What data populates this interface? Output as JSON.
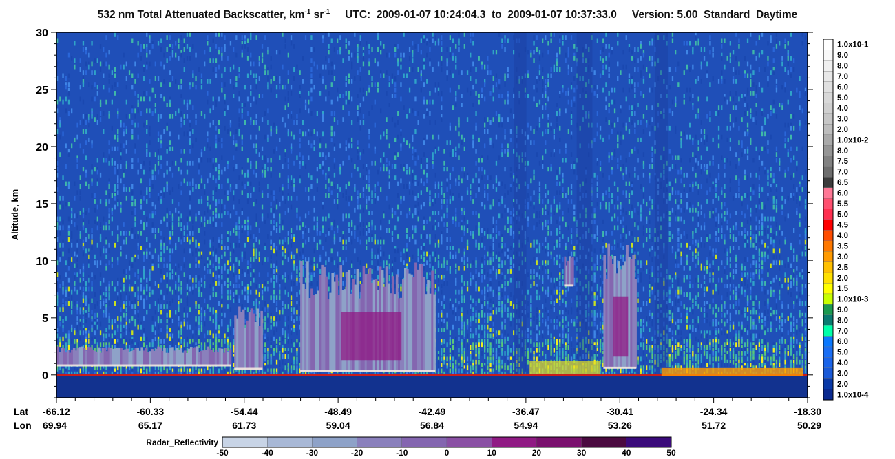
{
  "title": {
    "main": "532 nm Total Attenuated Backscatter, km",
    "unit_exp1": "-1",
    "unit_sr": " sr",
    "unit_exp2": "-1",
    "utc_prefix": "UTC:",
    "utc_start": "2009-01-07 10:24:04.3",
    "to_word": "to",
    "utc_end": "2009-01-07 10:37:33.0",
    "version": "Version: 5.00",
    "product": "Standard",
    "daytime": "Daytime"
  },
  "chart_data": {
    "type": "heatmap",
    "ylabel": "Altitude, km",
    "ylim": [
      -2,
      30
    ],
    "y_ticks": [
      0,
      5,
      10,
      15,
      20,
      25,
      30
    ],
    "x_rows": {
      "lat_label": "Lat",
      "lon_label": "Lon",
      "lat": [
        "-66.12",
        "-60.33",
        "-54.44",
        "-48.49",
        "-42.49",
        "-36.47",
        "-30.41",
        "-24.34",
        "-18.30"
      ],
      "lon": [
        "69.94",
        "65.17",
        "61.73",
        "59.04",
        "56.84",
        "54.94",
        "53.26",
        "51.72",
        "50.29"
      ]
    },
    "backscatter_colorbar": {
      "labels": [
        "1.0x10-1",
        "9.0",
        "8.0",
        "7.0",
        "6.0",
        "5.0",
        "4.0",
        "3.0",
        "2.0",
        "1.0x10-2",
        "8.0",
        "7.5",
        "7.0",
        "6.5",
        "6.0",
        "5.5",
        "5.0",
        "4.5",
        "4.0",
        "3.5",
        "3.0",
        "2.5",
        "2.0",
        "1.5",
        "1.0x10-3",
        "9.0",
        "8.0",
        "7.0",
        "6.0",
        "5.0",
        "4.0",
        "3.0",
        "2.0",
        "1.0x10-4"
      ],
      "colors": [
        "#ffffff",
        "#f8f8f8",
        "#f0f0f0",
        "#e8e8e8",
        "#e0e0e0",
        "#d8d8d8",
        "#cfcfcf",
        "#c6c6c6",
        "#bdbdbd",
        "#aaaaaa",
        "#969696",
        "#828282",
        "#6e6e6e",
        "#3c3c3c",
        "#ff7896",
        "#ff5070",
        "#ff3050",
        "#ff0000",
        "#ff4d00",
        "#ff7800",
        "#ff9a00",
        "#ffc000",
        "#ffe000",
        "#ffff00",
        "#c8ff00",
        "#1a9a50",
        "#0a7a70",
        "#00ffaa",
        "#0a78ff",
        "#1a6ef5",
        "#1a64ea",
        "#1a5ad8",
        "#0a3aa8",
        "#0a2a90"
      ]
    },
    "radar_colorbar": {
      "label": "Radar_Reflectivity",
      "ticks": [
        "-50",
        "-40",
        "-30",
        "-20",
        "-10",
        "0",
        "10",
        "20",
        "30",
        "40",
        "50"
      ],
      "colors": [
        "#c8d4e6",
        "#a8b8d6",
        "#8ea2c8",
        "#8a80bc",
        "#8466b0",
        "#8a50a4",
        "#901a84",
        "#7a106e",
        "#4a0a40",
        "#3a0a7a"
      ]
    },
    "features": [
      {
        "kind": "radar_cloud",
        "lat_start": -66.12,
        "lat_end": -55.0,
        "alt_bottom": 0.8,
        "alt_top": 2.5
      },
      {
        "kind": "radar_cloud",
        "lat_start": -54.8,
        "lat_end": -53.0,
        "alt_bottom": 0.5,
        "alt_top": 6.0
      },
      {
        "kind": "radar_cloud",
        "lat_start": -50.6,
        "lat_end": -42.0,
        "alt_bottom": 0.3,
        "alt_top": 10.0
      },
      {
        "kind": "radar_cloud",
        "lat_start": -31.3,
        "lat_end": -29.2,
        "alt_bottom": 0.6,
        "alt_top": 12.5
      },
      {
        "kind": "radar_cloud",
        "lat_start": -33.8,
        "lat_end": -33.2,
        "alt_bottom": 7.8,
        "alt_top": 10.5
      }
    ]
  },
  "colors": {
    "background_noise": "#1f4fb8",
    "surface_line": "#c81c1c",
    "axis": "#000000"
  }
}
